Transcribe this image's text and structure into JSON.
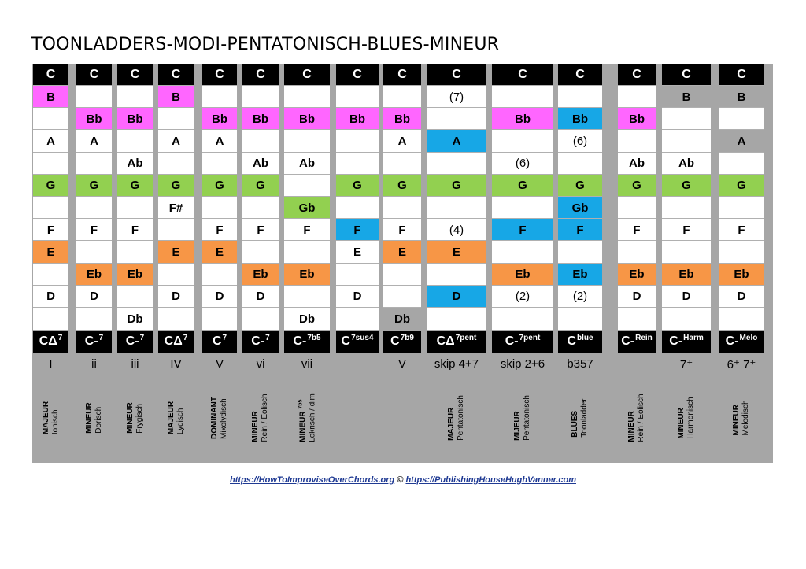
{
  "title": "TOONLADDERS-MODI-PENTATONISCH-BLUES-MINEUR",
  "colors": {
    "magenta": "#ff66ff",
    "green": "#92d050",
    "orange": "#f79646",
    "blue": "#17a7e6",
    "gray": "#a6a6a6",
    "black": "#000000",
    "white": "#ffffff"
  },
  "header_label": "C",
  "columns": [
    {
      "chord": "CΔ",
      "sup": "7",
      "degree": "I",
      "mode_type": "MAJEUR",
      "mode_sup": "",
      "mode_name": "Ionisch",
      "cells": [
        [
          "B",
          "magenta"
        ],
        [
          "",
          ""
        ],
        [
          "A",
          ""
        ],
        [
          "",
          ""
        ],
        [
          "G",
          "green"
        ],
        [
          "",
          ""
        ],
        [
          "F",
          ""
        ],
        [
          "E",
          "orange"
        ],
        [
          "",
          ""
        ],
        [
          "D",
          ""
        ],
        [
          "",
          ""
        ]
      ]
    },
    {
      "chord": "C-",
      "sup": "7",
      "degree": "ii",
      "mode_type": "MINEUR",
      "mode_sup": "",
      "mode_name": "Dorisch",
      "cells": [
        [
          "",
          ""
        ],
        [
          "Bb",
          "magenta"
        ],
        [
          "A",
          ""
        ],
        [
          "",
          ""
        ],
        [
          "G",
          "green"
        ],
        [
          "",
          ""
        ],
        [
          "F",
          ""
        ],
        [
          "",
          ""
        ],
        [
          "Eb",
          "orange"
        ],
        [
          "D",
          ""
        ],
        [
          "",
          ""
        ]
      ]
    },
    {
      "chord": "C-",
      "sup": "7",
      "degree": "iii",
      "mode_type": "MINEUR",
      "mode_sup": "",
      "mode_name": "Frygisch",
      "cells": [
        [
          "",
          ""
        ],
        [
          "Bb",
          "magenta"
        ],
        [
          "",
          ""
        ],
        [
          "Ab",
          ""
        ],
        [
          "G",
          "green"
        ],
        [
          "",
          ""
        ],
        [
          "F",
          ""
        ],
        [
          "",
          ""
        ],
        [
          "Eb",
          "orange"
        ],
        [
          "",
          ""
        ],
        [
          "Db",
          ""
        ]
      ]
    },
    {
      "chord": "CΔ",
      "sup": "7",
      "degree": "IV",
      "mode_type": "MAJEUR",
      "mode_sup": "",
      "mode_name": "Lydisch",
      "cells": [
        [
          "B",
          "magenta"
        ],
        [
          "",
          ""
        ],
        [
          "A",
          ""
        ],
        [
          "",
          ""
        ],
        [
          "G",
          "green"
        ],
        [
          "F#",
          ""
        ],
        [
          "",
          ""
        ],
        [
          "E",
          "orange"
        ],
        [
          "",
          ""
        ],
        [
          "D",
          ""
        ],
        [
          "",
          ""
        ]
      ]
    },
    {
      "chord": "C",
      "sup": "7",
      "degree": "V",
      "mode_type": "DOMINANT",
      "mode_sup": "",
      "mode_name": "Mixolydisch",
      "cells": [
        [
          "",
          ""
        ],
        [
          "Bb",
          "magenta"
        ],
        [
          "A",
          ""
        ],
        [
          "",
          ""
        ],
        [
          "G",
          "green"
        ],
        [
          "",
          ""
        ],
        [
          "F",
          ""
        ],
        [
          "E",
          "orange"
        ],
        [
          "",
          ""
        ],
        [
          "D",
          ""
        ],
        [
          "",
          ""
        ]
      ]
    },
    {
      "chord": "C-",
      "sup": "7",
      "degree": "vi",
      "mode_type": "MINEUR",
      "mode_sup": "",
      "mode_name": "Rein / Eolisch",
      "cells": [
        [
          "",
          ""
        ],
        [
          "Bb",
          "magenta"
        ],
        [
          "",
          ""
        ],
        [
          "Ab",
          ""
        ],
        [
          "G",
          "green"
        ],
        [
          "",
          ""
        ],
        [
          "F",
          ""
        ],
        [
          "",
          ""
        ],
        [
          "Eb",
          "orange"
        ],
        [
          "D",
          ""
        ],
        [
          "",
          ""
        ]
      ]
    },
    {
      "chord": "C-",
      "sup": "7b5",
      "degree": "vii",
      "mode_type": "MINEUR",
      "mode_sup": "7b5",
      "mode_name": "Lokrisch / dim",
      "cells": [
        [
          "",
          ""
        ],
        [
          "Bb",
          "magenta"
        ],
        [
          "",
          ""
        ],
        [
          "Ab",
          ""
        ],
        [
          "",
          ""
        ],
        [
          "Gb",
          "green"
        ],
        [
          "F",
          ""
        ],
        [
          "",
          ""
        ],
        [
          "Eb",
          "orange"
        ],
        [
          "",
          ""
        ],
        [
          "Db",
          ""
        ]
      ]
    },
    {
      "chord": "C",
      "sup": "7sus4",
      "degree": "",
      "mode_type": "",
      "mode_sup": "",
      "mode_name": "",
      "cells": [
        [
          "",
          ""
        ],
        [
          "Bb",
          "magenta"
        ],
        [
          "",
          ""
        ],
        [
          "",
          ""
        ],
        [
          "G",
          "green"
        ],
        [
          "",
          ""
        ],
        [
          "F",
          "blue"
        ],
        [
          "E",
          ""
        ],
        [
          "",
          ""
        ],
        [
          "D",
          ""
        ],
        [
          "",
          ""
        ]
      ]
    },
    {
      "chord": "C",
      "sup": "7b9",
      "degree": "V",
      "mode_type": "",
      "mode_sup": "",
      "mode_name": "",
      "cells": [
        [
          "",
          ""
        ],
        [
          "Bb",
          "magenta"
        ],
        [
          "A",
          ""
        ],
        [
          "",
          ""
        ],
        [
          "G",
          "green"
        ],
        [
          "",
          ""
        ],
        [
          "F",
          ""
        ],
        [
          "E",
          "orange"
        ],
        [
          "",
          ""
        ],
        [
          "",
          ""
        ],
        [
          "Db",
          "gray"
        ]
      ]
    },
    {
      "chord": "CΔ",
      "sup": "7pent",
      "degree": "skip 4+7",
      "mode_type": "MAJEUR",
      "mode_sup": "",
      "mode_name": "Pentatonisch",
      "cells": [
        [
          "(7)",
          "plain"
        ],
        [
          "",
          ""
        ],
        [
          "A",
          "blue"
        ],
        [
          "",
          ""
        ],
        [
          "G",
          "green"
        ],
        [
          "",
          ""
        ],
        [
          "(4)",
          "plain"
        ],
        [
          "E",
          "orange"
        ],
        [
          "",
          ""
        ],
        [
          "D",
          "blue"
        ],
        [
          "",
          ""
        ]
      ]
    },
    {
      "chord": "C-",
      "sup": "7pent",
      "degree": "skip 2+6",
      "mode_type": "MIJEUR",
      "mode_sup": "",
      "mode_name": "Pentatonisch",
      "cells": [
        [
          "",
          ""
        ],
        [
          "Bb",
          "magenta"
        ],
        [
          "",
          ""
        ],
        [
          "(6)",
          "plain"
        ],
        [
          "G",
          "green"
        ],
        [
          "",
          ""
        ],
        [
          "F",
          "blue"
        ],
        [
          "",
          ""
        ],
        [
          "Eb",
          "orange"
        ],
        [
          "(2)",
          "plain"
        ],
        [
          "",
          ""
        ]
      ]
    },
    {
      "chord": "C",
      "sup": "blue",
      "degree": "b357",
      "mode_type": "BLUES",
      "mode_sup": "",
      "mode_name": "Toonladder",
      "cells": [
        [
          "",
          ""
        ],
        [
          "Bb",
          "blue"
        ],
        [
          "(6)",
          "plain"
        ],
        [
          "",
          ""
        ],
        [
          "G",
          "green"
        ],
        [
          "Gb",
          "blue"
        ],
        [
          "F",
          "blue"
        ],
        [
          "",
          ""
        ],
        [
          "Eb",
          "blue"
        ],
        [
          "(2)",
          "plain"
        ],
        [
          "",
          ""
        ]
      ]
    },
    {
      "chord": "C-",
      "sup": "Rein",
      "degree": "",
      "mode_type": "MINEUR",
      "mode_sup": "",
      "mode_name": "Rein / Eolisch",
      "cells": [
        [
          "",
          ""
        ],
        [
          "Bb",
          "magenta"
        ],
        [
          "",
          ""
        ],
        [
          "Ab",
          ""
        ],
        [
          "G",
          "green"
        ],
        [
          "",
          ""
        ],
        [
          "F",
          ""
        ],
        [
          "",
          ""
        ],
        [
          "Eb",
          "orange"
        ],
        [
          "D",
          ""
        ],
        [
          "",
          ""
        ]
      ]
    },
    {
      "chord": "C-",
      "sup": "Harm",
      "degree": "7⁺",
      "mode_type": "MINEUR",
      "mode_sup": "",
      "mode_name": "Harmonisch",
      "cells": [
        [
          "B",
          "gray"
        ],
        [
          "",
          ""
        ],
        [
          "",
          ""
        ],
        [
          "Ab",
          ""
        ],
        [
          "G",
          "green"
        ],
        [
          "",
          ""
        ],
        [
          "F",
          ""
        ],
        [
          "",
          ""
        ],
        [
          "Eb",
          "orange"
        ],
        [
          "D",
          ""
        ],
        [
          "",
          ""
        ]
      ]
    },
    {
      "chord": "C-",
      "sup": "Melo",
      "degree": "6⁺ 7⁺",
      "mode_type": "MINEUR",
      "mode_sup": "",
      "mode_name": "Melodisch",
      "cells": [
        [
          "B",
          "gray"
        ],
        [
          "",
          ""
        ],
        [
          "A",
          "gray"
        ],
        [
          "",
          ""
        ],
        [
          "G",
          "green"
        ],
        [
          "",
          ""
        ],
        [
          "F",
          ""
        ],
        [
          "",
          ""
        ],
        [
          "Eb",
          "orange"
        ],
        [
          "D",
          ""
        ],
        [
          "",
          ""
        ]
      ]
    }
  ],
  "footer": {
    "link1": "https://HowToImproviseOverChords.org",
    "sep": " © ",
    "link2": "https://PublishingHouseHughVanner.com"
  }
}
